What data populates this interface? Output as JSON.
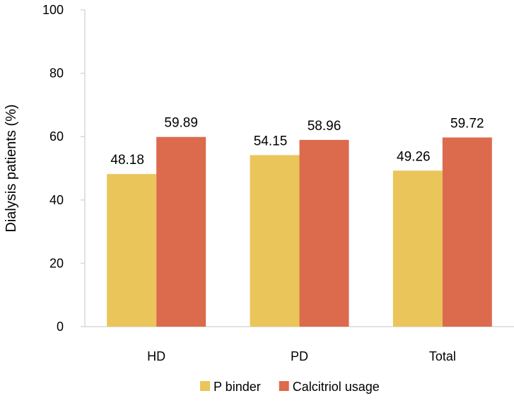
{
  "chart_data": {
    "type": "bar",
    "title": "",
    "xlabel": "",
    "ylabel": "Dialysis patients (%)",
    "ylim": [
      0,
      100
    ],
    "yticks": [
      0,
      20,
      40,
      60,
      80,
      100
    ],
    "grid": false,
    "legend_position": "bottom",
    "categories": [
      "HD",
      "PD",
      "Total"
    ],
    "series": [
      {
        "name": "P binder",
        "color": "#EAC55A",
        "values": [
          48.18,
          54.15,
          49.26
        ]
      },
      {
        "name": "Calcitriol usage",
        "color": "#DC6A4C",
        "values": [
          59.89,
          58.96,
          59.72
        ]
      }
    ]
  }
}
